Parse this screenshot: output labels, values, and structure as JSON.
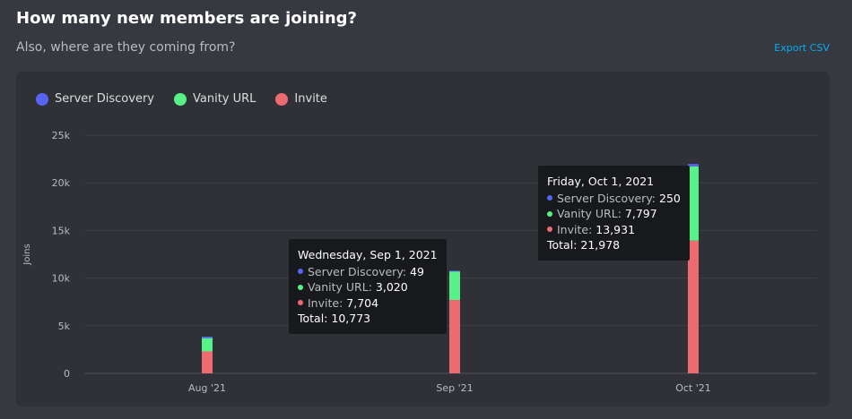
{
  "header": {
    "title": "How many new members are joining?",
    "subtitle": "Also, where are they coming from?",
    "export_label": "Export CSV"
  },
  "colors": {
    "server_discovery": "#5865f2",
    "vanity_url": "#57f287",
    "invite": "#ed6a70"
  },
  "chart_data": {
    "type": "bar",
    "stacked": true,
    "categories": [
      "Aug '21",
      "Sep '21",
      "Oct '21"
    ],
    "ylabel": "Joins",
    "ylim": [
      0,
      25000
    ],
    "yticks": [
      "0",
      "5k",
      "10k",
      "15k",
      "20k",
      "25k"
    ],
    "ytick_values": [
      0,
      5000,
      10000,
      15000,
      20000,
      25000
    ],
    "grid": true,
    "legend_position": "top-left",
    "series": [
      {
        "name": "Invite",
        "key": "invite",
        "values": [
          2300,
          7704,
          13931
        ]
      },
      {
        "name": "Vanity URL",
        "key": "vanity_url",
        "values": [
          1400,
          3020,
          7797
        ]
      },
      {
        "name": "Server Discovery",
        "key": "server_discovery",
        "values": [
          150,
          49,
          250
        ]
      }
    ],
    "legend_order": [
      "Server Discovery",
      "Vanity URL",
      "Invite"
    ]
  },
  "tooltips": [
    {
      "title": "Wednesday, Sep 1, 2021",
      "rows": [
        {
          "label": "Server Discovery:",
          "value": "49",
          "key": "server_discovery"
        },
        {
          "label": "Vanity URL:",
          "value": "3,020",
          "key": "vanity_url"
        },
        {
          "label": "Invite:",
          "value": "7,704",
          "key": "invite"
        }
      ],
      "total": "Total: 10,773"
    },
    {
      "title": "Friday, Oct 1, 2021",
      "rows": [
        {
          "label": "Server Discovery:",
          "value": "250",
          "key": "server_discovery"
        },
        {
          "label": "Vanity URL:",
          "value": "7,797",
          "key": "vanity_url"
        },
        {
          "label": "Invite:",
          "value": "13,931",
          "key": "invite"
        }
      ],
      "total": "Total: 21,978"
    }
  ]
}
